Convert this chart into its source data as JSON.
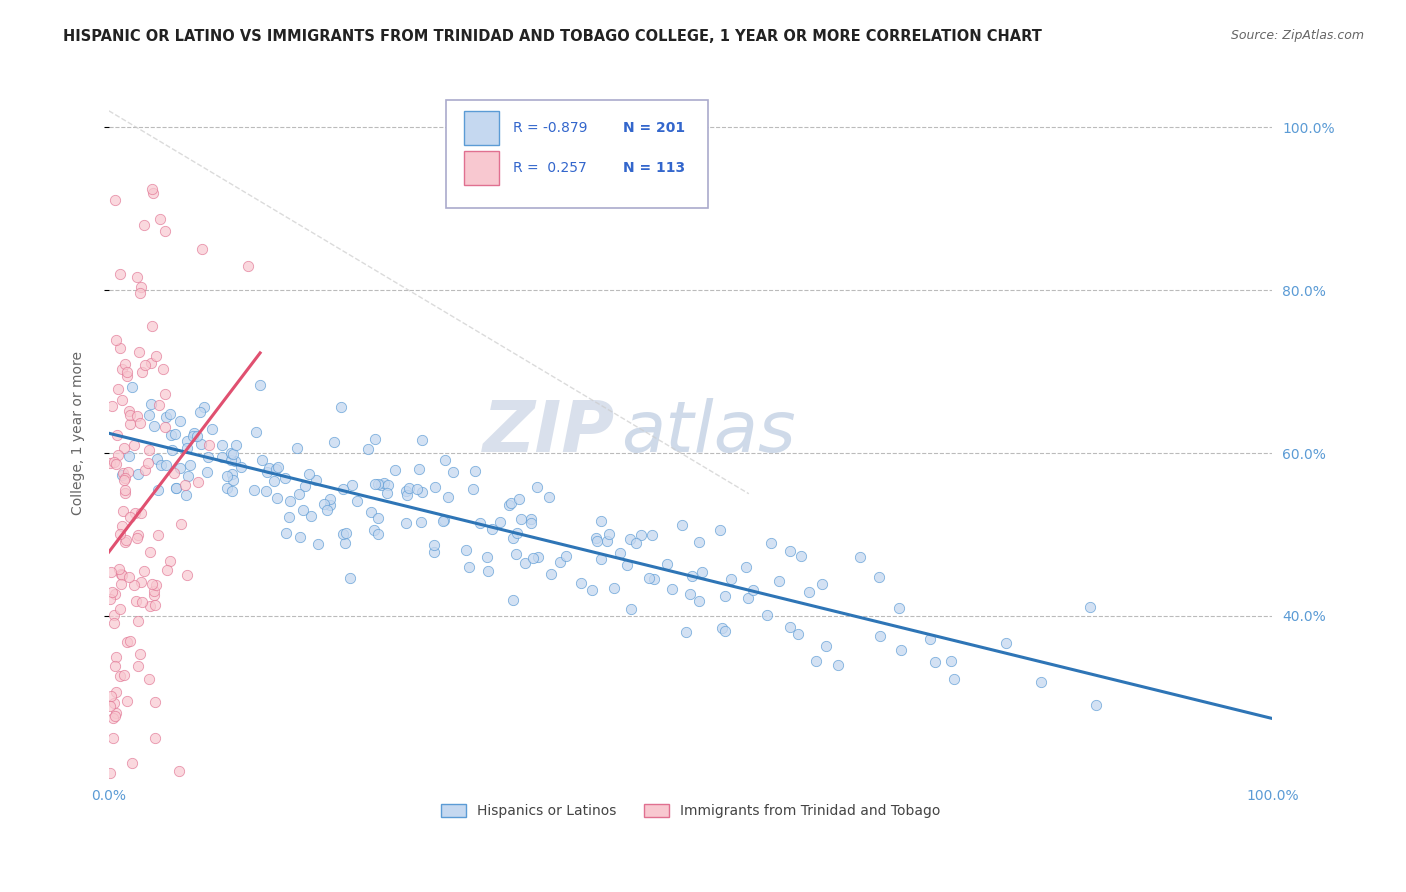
{
  "title": "HISPANIC OR LATINO VS IMMIGRANTS FROM TRINIDAD AND TOBAGO COLLEGE, 1 YEAR OR MORE CORRELATION CHART",
  "source": "Source: ZipAtlas.com",
  "ylabel": "College, 1 year or more",
  "xlim": [
    0.0,
    1.0
  ],
  "ylim": [
    0.2,
    1.05
  ],
  "yticks": [
    0.4,
    0.6,
    0.8,
    1.0
  ],
  "ytick_labels": [
    "40.0%",
    "60.0%",
    "80.0%",
    "100.0%"
  ],
  "xtick_positions": [
    0.0,
    1.0
  ],
  "xtick_labels": [
    "0.0%",
    "100.0%"
  ],
  "series": [
    {
      "label": "Hispanics or Latinos",
      "R": -0.879,
      "N": 201,
      "color_fill": "#c5d8f0",
      "color_edge": "#5b9bd5",
      "color_line": "#2e75b6"
    },
    {
      "label": "Immigrants from Trinidad and Tobago",
      "R": 0.257,
      "N": 113,
      "color_fill": "#f8c8d0",
      "color_edge": "#e07090",
      "color_line": "#e05070"
    }
  ],
  "grid_color": "#bbbbbb",
  "grid_style": "--",
  "background_color": "#ffffff",
  "title_fontsize": 10.5,
  "source_fontsize": 9,
  "axis_label_color": "#5b9bd5",
  "tick_label_color": "#5b9bd5",
  "watermark_zip": "ZIP",
  "watermark_atlas": "atlas",
  "watermark_color_zip": "#c8d4e8",
  "watermark_color_atlas": "#b8cce4",
  "watermark_fontsize": 52,
  "legend_R1": "-0.879",
  "legend_N1": "201",
  "legend_R2": " 0.257",
  "legend_N2": "113"
}
